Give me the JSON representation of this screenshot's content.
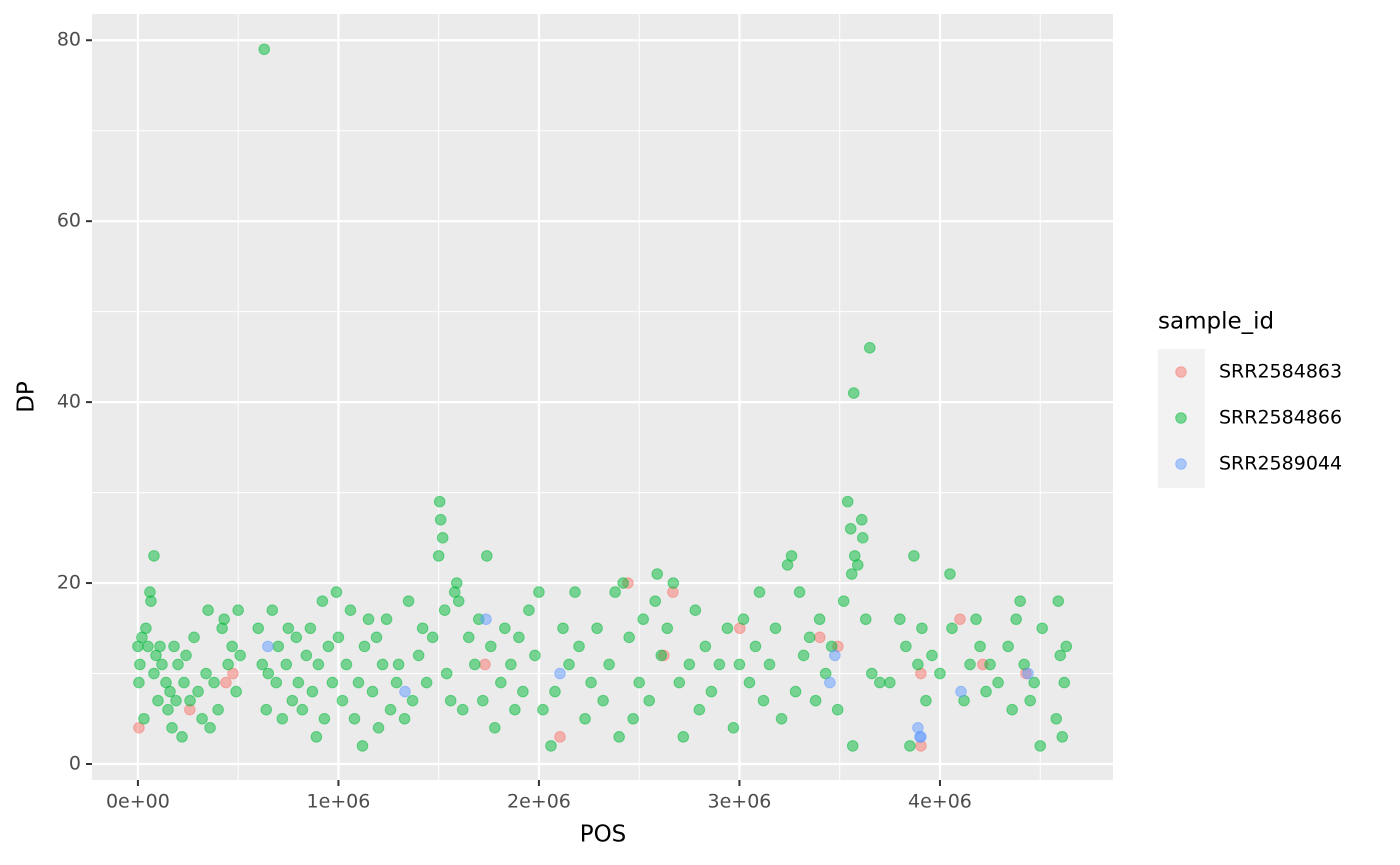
{
  "chart_data": {
    "type": "scatter",
    "x_label": "POS",
    "y_label": "DP",
    "legend_title": "sample_id",
    "legend_position": "right",
    "grid": true,
    "xlim": [
      -229000,
      4863000
    ],
    "ylim": [
      -1.77,
      82.9
    ],
    "xticks": [
      {
        "value": 0,
        "label": "0e+00"
      },
      {
        "value": 1000000,
        "label": "1e+06"
      },
      {
        "value": 2000000,
        "label": "2e+06"
      },
      {
        "value": 3000000,
        "label": "3e+06"
      },
      {
        "value": 4000000,
        "label": "4e+06"
      }
    ],
    "yticks": [
      0,
      20,
      40,
      60,
      80
    ],
    "series": [
      {
        "name": "SRR2584863",
        "color": "#F8766D",
        "x": [
          5000,
          259000,
          439000,
          474000,
          1731000,
          2444000,
          2668000,
          2105000,
          3002000,
          3401000,
          3491000,
          3905000,
          3905000,
          4100000,
          4214000,
          4429000,
          2623000
        ],
        "values": [
          4,
          6,
          9,
          10,
          11,
          20,
          19,
          3,
          15,
          14,
          13,
          2,
          10,
          16,
          11,
          10,
          12
        ]
      },
      {
        "name": "SRR2584866",
        "color": "#00BA38",
        "x": [
          0,
          5000,
          10000,
          20000,
          30000,
          40000,
          50000,
          60000,
          65000,
          80000,
          80000,
          90000,
          100000,
          110000,
          120000,
          140000,
          150000,
          160000,
          170000,
          180000,
          190000,
          200000,
          220000,
          230000,
          240000,
          260000,
          280000,
          300000,
          320000,
          340000,
          350000,
          360000,
          380000,
          400000,
          420000,
          430000,
          450000,
          470000,
          490000,
          500000,
          510000,
          600000,
          620000,
          630000,
          640000,
          650000,
          670000,
          690000,
          700000,
          720000,
          740000,
          750000,
          770000,
          790000,
          800000,
          820000,
          840000,
          860000,
          870000,
          890000,
          900000,
          920000,
          930000,
          950000,
          970000,
          990000,
          1000000,
          1020000,
          1040000,
          1060000,
          1080000,
          1100000,
          1120000,
          1130000,
          1150000,
          1170000,
          1190000,
          1200000,
          1220000,
          1240000,
          1260000,
          1290000,
          1300000,
          1330000,
          1350000,
          1370000,
          1400000,
          1420000,
          1440000,
          1470000,
          1500000,
          1505000,
          1510000,
          1520000,
          1530000,
          1540000,
          1560000,
          1580000,
          1590000,
          1600000,
          1620000,
          1650000,
          1680000,
          1700000,
          1720000,
          1740000,
          1760000,
          1780000,
          1810000,
          1830000,
          1860000,
          1880000,
          1900000,
          1920000,
          1950000,
          1980000,
          2000000,
          2020000,
          2060000,
          2080000,
          2120000,
          2150000,
          2180000,
          2200000,
          2230000,
          2260000,
          2290000,
          2320000,
          2350000,
          2380000,
          2400000,
          2420000,
          2450000,
          2470000,
          2500000,
          2520000,
          2550000,
          2580000,
          2590000,
          2610000,
          2640000,
          2670000,
          2700000,
          2720000,
          2750000,
          2780000,
          2800000,
          2830000,
          2860000,
          2900000,
          2940000,
          2970000,
          3000000,
          3020000,
          3050000,
          3080000,
          3100000,
          3120000,
          3150000,
          3180000,
          3210000,
          3240000,
          3260000,
          3280000,
          3300000,
          3320000,
          3350000,
          3380000,
          3400000,
          3430000,
          3460000,
          3490000,
          3520000,
          3540000,
          3555000,
          3560000,
          3565000,
          3570000,
          3575000,
          3590000,
          3610000,
          3615000,
          3630000,
          3650000,
          3660000,
          3700000,
          3750000,
          3800000,
          3830000,
          3850000,
          3870000,
          3890000,
          3910000,
          3930000,
          3960000,
          4000000,
          4050000,
          4060000,
          4120000,
          4150000,
          4180000,
          4200000,
          4230000,
          4250000,
          4290000,
          4340000,
          4360000,
          4380000,
          4400000,
          4420000,
          4450000,
          4470000,
          4500000,
          4510000,
          4580000,
          4590000,
          4600000,
          4610000,
          4620000,
          4630000
        ],
        "values": [
          13,
          9,
          11,
          14,
          5,
          15,
          13,
          19,
          18,
          23,
          10,
          12,
          7,
          13,
          11,
          9,
          6,
          8,
          4,
          13,
          7,
          11,
          3,
          9,
          12,
          7,
          14,
          8,
          5,
          10,
          17,
          4,
          9,
          6,
          15,
          16,
          11,
          13,
          8,
          17,
          12,
          15,
          11,
          79,
          6,
          10,
          17,
          9,
          13,
          5,
          11,
          15,
          7,
          14,
          9,
          6,
          12,
          15,
          8,
          3,
          11,
          18,
          5,
          13,
          9,
          19,
          14,
          7,
          11,
          17,
          5,
          9,
          2,
          13,
          16,
          8,
          14,
          4,
          11,
          16,
          6,
          9,
          11,
          5,
          18,
          7,
          12,
          15,
          9,
          14,
          23,
          29,
          27,
          25,
          17,
          10,
          7,
          19,
          20,
          18,
          6,
          14,
          11,
          16,
          7,
          23,
          13,
          4,
          9,
          15,
          11,
          6,
          14,
          8,
          17,
          12,
          19,
          6,
          2,
          8,
          15,
          11,
          19,
          13,
          5,
          9,
          15,
          7,
          11,
          19,
          3,
          20,
          14,
          5,
          9,
          16,
          7,
          18,
          21,
          12,
          15,
          20,
          9,
          3,
          11,
          17,
          6,
          13,
          8,
          11,
          15,
          4,
          11,
          16,
          9,
          13,
          19,
          7,
          11,
          15,
          5,
          22,
          23,
          8,
          19,
          12,
          14,
          7,
          16,
          10,
          13,
          6,
          18,
          29,
          26,
          21,
          2,
          41,
          23,
          22,
          27,
          25,
          16,
          46,
          10,
          9,
          9,
          16,
          13,
          2,
          23,
          11,
          15,
          7,
          12,
          10,
          21,
          15,
          7,
          11,
          16,
          13,
          8,
          11,
          9,
          13,
          6,
          16,
          18,
          11,
          7,
          9,
          2,
          15,
          5,
          18,
          12,
          3,
          9,
          13
        ]
      },
      {
        "name": "SRR2589044",
        "color": "#619CFF",
        "x": [
          648000,
          1332000,
          1736000,
          2105000,
          3451000,
          3476000,
          3890000,
          3900000,
          3905000,
          4105000,
          4439000
        ],
        "values": [
          13,
          8,
          16,
          10,
          9,
          12,
          4,
          3,
          3,
          8,
          10
        ]
      }
    ]
  }
}
